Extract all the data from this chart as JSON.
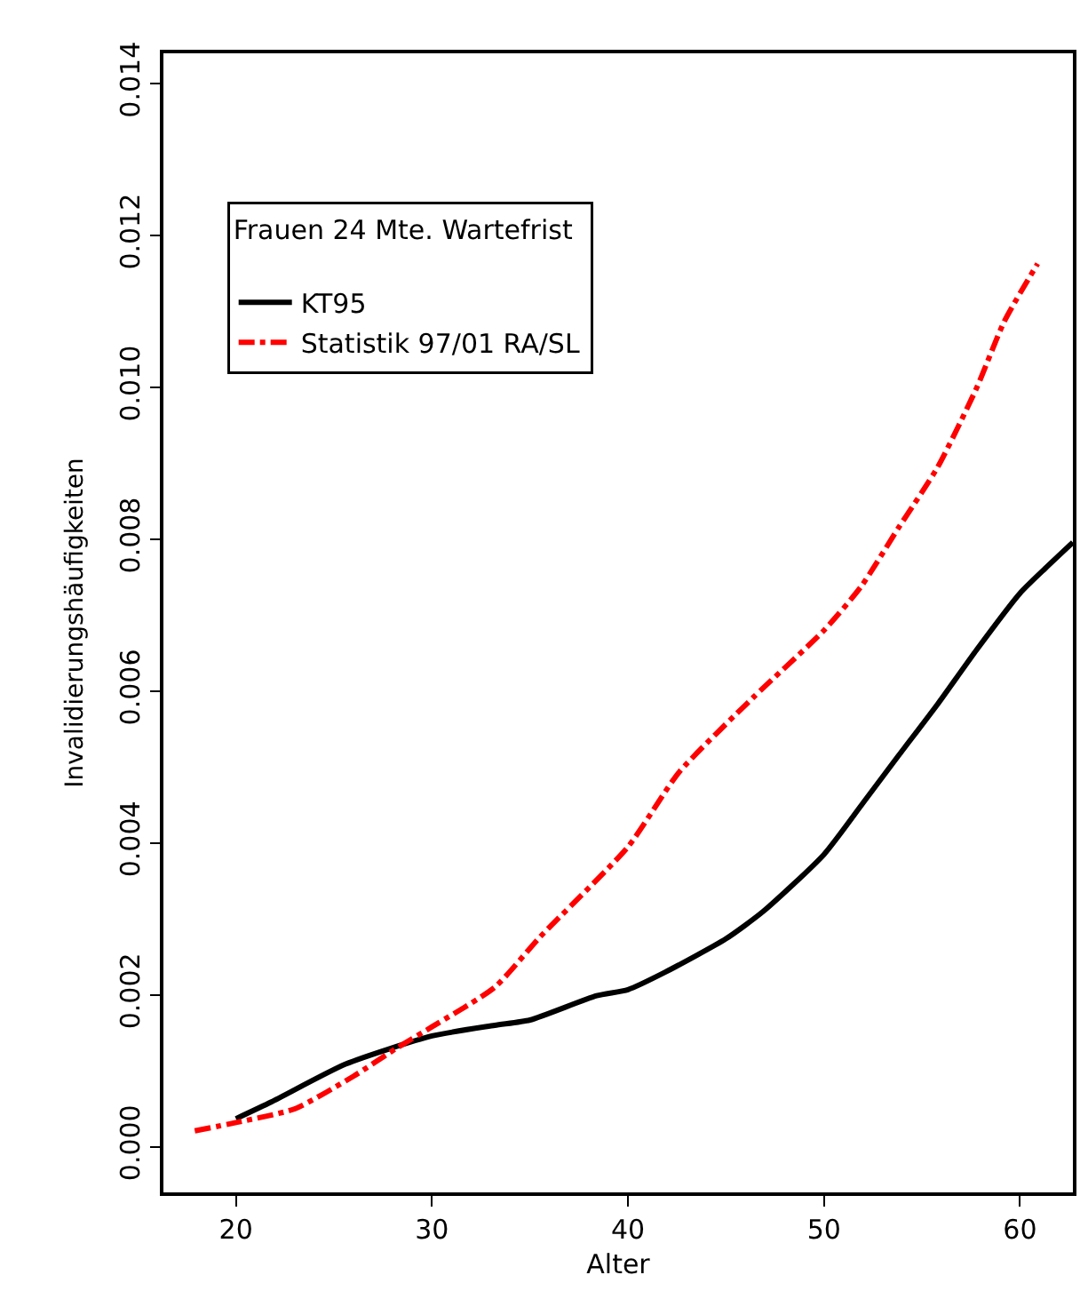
{
  "chart_data": {
    "type": "line",
    "xlabel": "Alter",
    "ylabel": "Invalidierungshäufigkeiten",
    "legend_title": "Frauen 24 Mte. Wartefrist",
    "xlim": [
      16.3,
      62.7
    ],
    "xticks": [
      20,
      30,
      40,
      50,
      60
    ],
    "ylim": [
      -0.0006,
      0.0144
    ],
    "yticks": [
      {
        "value": 0,
        "label": "0.000"
      },
      {
        "value": 0.002,
        "label": "0.002"
      },
      {
        "value": 0.004,
        "label": "0.004"
      },
      {
        "value": 0.006,
        "label": "0.006"
      },
      {
        "value": 0.008,
        "label": "0.008"
      },
      {
        "value": 0.01,
        "label": "0.010"
      },
      {
        "value": 0.012,
        "label": "0.012"
      },
      {
        "value": 0.014,
        "label": "0.014"
      }
    ],
    "legend": "top left",
    "marker": "none",
    "series": [
      {
        "name": "KT95",
        "color": "#000000",
        "line_style": "solid",
        "x": [
          20,
          21.8,
          25.6,
          30,
          33.2,
          35,
          38.4,
          40,
          41.9,
          45,
          46.9,
          50,
          52,
          53.8,
          55.8,
          57.8,
          60,
          61.3,
          62.7
        ],
        "values": [
          0.00037,
          0.00059,
          0.00109,
          0.00146,
          0.0016,
          0.00167,
          0.00199,
          0.00207,
          0.0023,
          0.00274,
          0.0031,
          0.00385,
          0.00453,
          0.00515,
          0.00583,
          0.00655,
          0.00729,
          0.00762,
          0.00796
        ]
      },
      {
        "name": "Statistik 97/01 RA/SL",
        "color": "#ff0000",
        "line_style": "dashdot",
        "x": [
          17.9,
          20,
          23,
          26,
          28.2,
          30,
          33.2,
          35.5,
          40,
          42.6,
          46.4,
          50,
          51.9,
          53.8,
          55.8,
          57.8,
          59.2,
          60.9
        ],
        "values": [
          0.00021,
          0.00032,
          0.0005,
          0.00093,
          0.0013,
          0.00158,
          0.0021,
          0.00276,
          0.00395,
          0.00493,
          0.00592,
          0.0068,
          0.00738,
          0.00815,
          0.00895,
          0.01,
          0.01087,
          0.01163
        ]
      }
    ]
  }
}
